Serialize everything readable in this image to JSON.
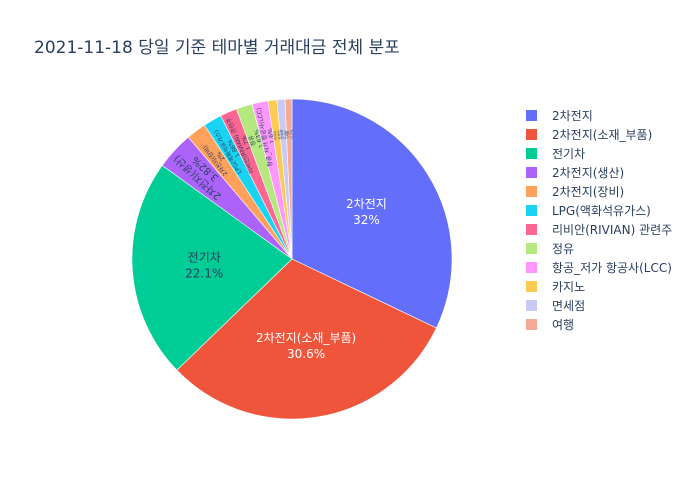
{
  "chart_data": {
    "type": "pie",
    "title": "2021-11-18 당일 기준 테마별 거래대금 전체 분포",
    "legend_position": "right",
    "categories": [
      "2차전지",
      "2차전지(소재_부품)",
      "전기차",
      "2차전지(생산)",
      "2차전지(장비)",
      "LPG(액화석유가스)",
      "리비안(RIVIAN) 관련주",
      "정유",
      "항공_저가 항공사(LCC)",
      "카지노",
      "면세점",
      "여행"
    ],
    "values": [
      32.0,
      30.6,
      22.1,
      3.82,
      2.0,
      1.86,
      1.7,
      1.63,
      1.6,
      0.9,
      0.8,
      0.7
    ],
    "labels": [
      "32%",
      "30.6%",
      "22.1%",
      "3.82%",
      "2%",
      "1.86%",
      "1.7%",
      "1.63%",
      "1.6%",
      "0.9%",
      "0.8%",
      "0.7%"
    ],
    "colors": [
      "#636efa",
      "#EF553B",
      "#00cc96",
      "#ab63fa",
      "#FFA15A",
      "#19d3f3",
      "#FF6692",
      "#B6E880",
      "#FF97FF",
      "#FECB52",
      "#c9c9f5",
      "#f5aa96"
    ]
  }
}
